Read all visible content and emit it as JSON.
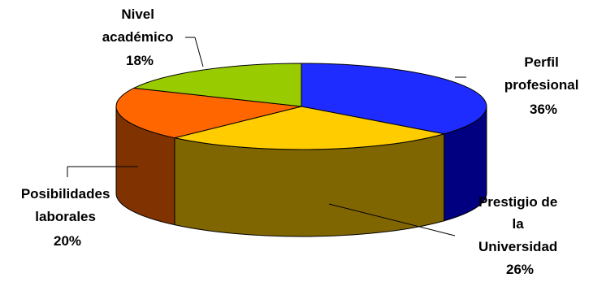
{
  "chart_data": {
    "type": "pie",
    "style": "3d",
    "slices": [
      {
        "label_lines": [
          "Perfil",
          "profesional"
        ],
        "pct_text": "36%",
        "value": 36,
        "color": "#1f2cff",
        "side_color": "#000080"
      },
      {
        "label_lines": [
          "Prestigio de",
          "la",
          "Universidad"
        ],
        "pct_text": "26%",
        "value": 26,
        "color": "#ffcc00",
        "side_color": "#806600"
      },
      {
        "label_lines": [
          "Posibilidades",
          "laborales"
        ],
        "pct_text": "20%",
        "value": 20,
        "color": "#ff6600",
        "side_color": "#803300"
      },
      {
        "label_lines": [
          "Nivel",
          "académico"
        ],
        "pct_text": "18%",
        "value": 18,
        "color": "#99cc00",
        "side_color": "#4d6600"
      }
    ]
  }
}
